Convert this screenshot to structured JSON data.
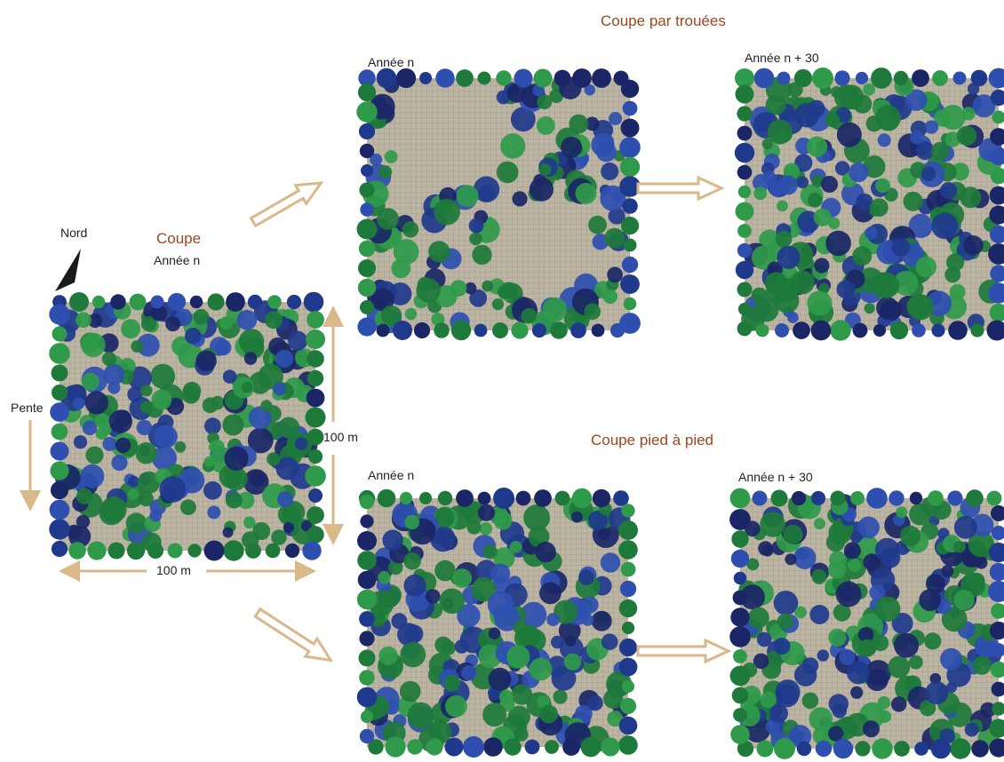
{
  "labels": {
    "gap_title": "Coupe par trouées",
    "tree_title": "Coupe pied à pied",
    "cut_title": "Coupe",
    "year_n": "Année n",
    "year_n30": "Année n + 30",
    "north": "Nord",
    "slope": "Pente",
    "dim_vertical": "100 m",
    "dim_horizontal": "100 m"
  },
  "colors": {
    "title_text": "#a0451e",
    "arrow": "#d9b88a",
    "ground": "#bdb5a4",
    "grid": "#9d9585",
    "tree_green": "#1d7a3a",
    "tree_green_light": "#2f9a4a",
    "tree_blue": "#1f3a8c",
    "tree_navy": "#1a2666",
    "tree_blue_mid": "#2e4fb0"
  }
}
